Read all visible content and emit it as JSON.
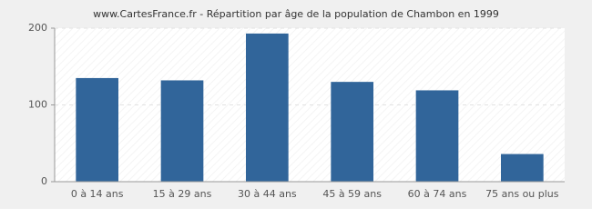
{
  "chart_data": {
    "type": "bar",
    "title": "www.CartesFrance.fr - Répartition par âge de la population de Chambon en 1999",
    "categories": [
      "0 à 14 ans",
      "15 à 29 ans",
      "30 à 44 ans",
      "45 à 59 ans",
      "60 à 74 ans",
      "75 ans ou plus"
    ],
    "values": [
      135,
      132,
      193,
      130,
      119,
      36
    ],
    "color": "#31659a",
    "ylim": [
      0,
      200
    ],
    "yticks": [
      0,
      100,
      200
    ],
    "grid": true
  }
}
